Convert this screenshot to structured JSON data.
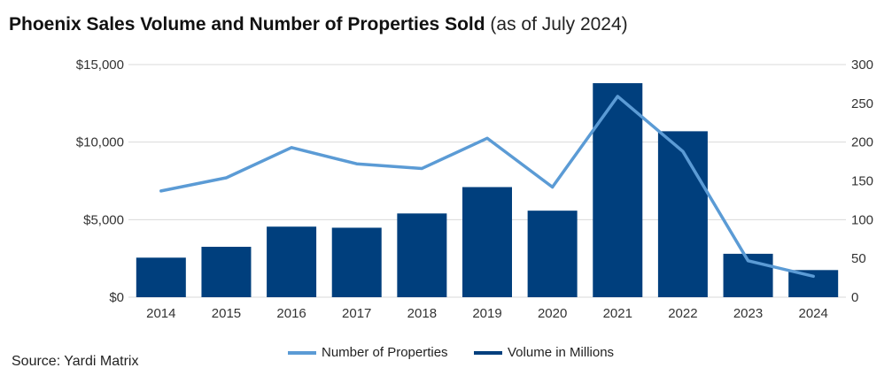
{
  "title": {
    "main": "Phoenix Sales Volume and Number of Properties Sold",
    "sub": "(as of July 2024)"
  },
  "source": "Source: Yardi Matrix",
  "colors": {
    "bar": "#003f7d",
    "line": "#5b9bd5",
    "grid": "#d9d9d9",
    "axis_text": "#333333"
  },
  "chart_data": {
    "type": "bar",
    "categories": [
      "2014",
      "2015",
      "2016",
      "2017",
      "2018",
      "2019",
      "2020",
      "2021",
      "2022",
      "2023",
      "2024"
    ],
    "series": [
      {
        "name": "Volume in Millions",
        "type": "bar",
        "axis": "left",
        "values": [
          2550,
          3250,
          4550,
          4480,
          5400,
          7100,
          5580,
          13800,
          10700,
          2800,
          1750
        ]
      },
      {
        "name": "Number of Properties",
        "type": "line",
        "axis": "right",
        "values": [
          137,
          154,
          193,
          172,
          166,
          205,
          142,
          259,
          188,
          47,
          27
        ]
      }
    ],
    "left_axis": {
      "min": 0,
      "max": 15000,
      "ticks": [
        0,
        5000,
        10000,
        15000
      ],
      "tick_labels": [
        "$0",
        "$5,000",
        "$10,000",
        "$15,000"
      ]
    },
    "right_axis": {
      "min": 0,
      "max": 300,
      "ticks": [
        0,
        50,
        100,
        150,
        200,
        250,
        300
      ],
      "tick_labels": [
        "0",
        "50",
        "100",
        "150",
        "200",
        "250",
        "300"
      ]
    },
    "grid": true,
    "legend_position": "bottom",
    "legend": [
      "Number of Properties",
      "Volume in Millions"
    ]
  }
}
